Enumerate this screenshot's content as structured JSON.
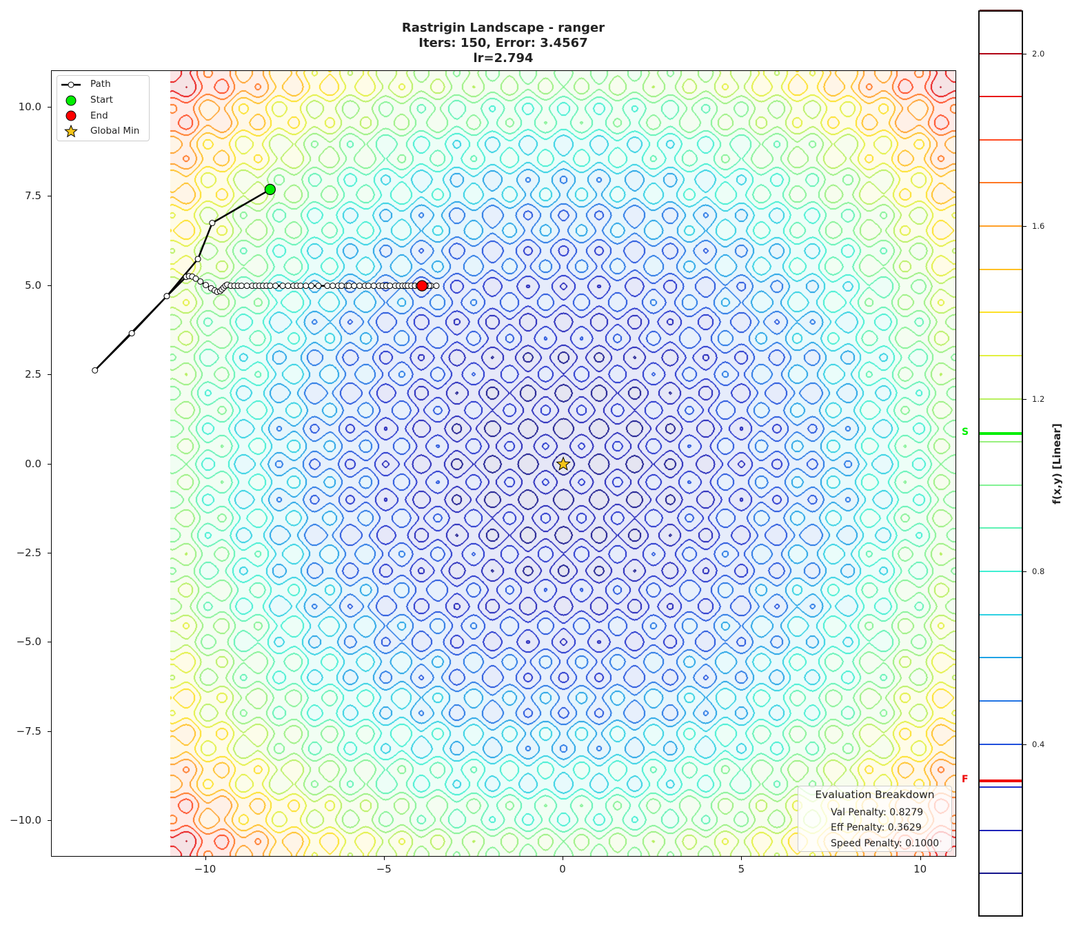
{
  "chart_data": {
    "type": "contour",
    "title_lines": [
      "Rastrigin Landscape - ranger",
      "Iters: 150, Error: 3.4567",
      "lr=2.794"
    ],
    "xlim": [
      -14.31,
      11.01
    ],
    "ylim": [
      -11.02,
      11.02
    ],
    "landscape_range": [
      -11,
      11
    ],
    "x_ticks": [
      -10,
      -5,
      0,
      5,
      10
    ],
    "x_tick_labels": [
      "−10",
      "−5",
      "0",
      "5",
      "10"
    ],
    "y_ticks": [
      10,
      7.5,
      5,
      2.5,
      0,
      -2.5,
      -5,
      -7.5,
      -10
    ],
    "y_tick_labels": [
      "10.0",
      "7.5",
      "5.0",
      "2.5",
      "0.0",
      "−2.5",
      "−5.0",
      "−7.5",
      "−10.0"
    ],
    "grid": false,
    "function": "rastrigin",
    "colorbar": {
      "label": "f(x,y) [Linear]",
      "range": [
        0,
        2.1
      ],
      "ticks": [
        2.0,
        1.6,
        1.2,
        0.8,
        0.4
      ],
      "tick_labels": [
        "2.0",
        "1.6",
        "1.2",
        "0.8",
        "0.4"
      ],
      "levels": [
        0.1,
        0.2,
        0.3,
        0.4,
        0.5,
        0.6,
        0.7,
        0.8,
        0.9,
        1.0,
        1.1,
        1.2,
        1.3,
        1.4,
        1.5,
        1.6,
        1.7,
        1.8,
        1.9,
        2.0,
        2.1
      ],
      "level_colors": [
        "#14148c",
        "#1e22b8",
        "#2030cc",
        "#2050dc",
        "#2274e4",
        "#20a2e6",
        "#2ed0e2",
        "#40efd2",
        "#5ef2b4",
        "#82f294",
        "#98f07e",
        "#b8f060",
        "#e2f040",
        "#fde028",
        "#ffc024",
        "#ffa028",
        "#ff7824",
        "#ff4a22",
        "#e81818",
        "#b00414",
        "#501010"
      ],
      "start_marker": {
        "label": "S",
        "value": 1.12,
        "color": "#00ee00"
      },
      "end_marker": {
        "label": "F",
        "value": 0.314,
        "color": "#ee0000"
      }
    },
    "legend": {
      "placement": "top-left",
      "entries": [
        {
          "label": "Path"
        },
        {
          "label": "Start",
          "color": "#00ee00"
        },
        {
          "label": "End",
          "color": "#ff0000"
        },
        {
          "label": "Global Min",
          "color": "#f5c518"
        }
      ]
    },
    "start": [
      -8.2,
      7.7
    ],
    "end": [
      -3.95,
      5.0
    ],
    "global_min": [
      0,
      0
    ],
    "path": [
      [
        -8.2,
        7.7
      ],
      [
        -9.82,
        6.76
      ],
      [
        -10.22,
        5.75
      ],
      [
        -11.09,
        4.71
      ],
      [
        -12.07,
        3.67
      ],
      [
        -13.1,
        2.63
      ],
      [
        -11.09,
        4.71
      ],
      [
        -10.55,
        5.25
      ],
      [
        -10.47,
        5.27
      ],
      [
        -10.38,
        5.26
      ],
      [
        -10.28,
        5.2
      ],
      [
        -10.15,
        5.12
      ],
      [
        -10.0,
        5.02
      ],
      [
        -9.85,
        4.93
      ],
      [
        -9.75,
        4.87
      ],
      [
        -9.68,
        4.83
      ],
      [
        -9.6,
        4.85
      ],
      [
        -9.55,
        4.9
      ],
      [
        -9.5,
        4.95
      ],
      [
        -9.45,
        5.0
      ],
      [
        -9.4,
        5.03
      ],
      [
        -9.3,
        5.0
      ],
      [
        -9.2,
        5.0
      ],
      [
        -9.1,
        5.0
      ],
      [
        -9.0,
        5.0
      ],
      [
        -8.85,
        5.0
      ],
      [
        -8.7,
        5.0
      ],
      [
        -8.6,
        5.0
      ],
      [
        -8.5,
        5.0
      ],
      [
        -8.4,
        5.0
      ],
      [
        -8.3,
        5.0
      ],
      [
        -8.2,
        5.0
      ],
      [
        -8.05,
        5.0
      ],
      [
        -7.85,
        5.0
      ],
      [
        -7.7,
        5.0
      ],
      [
        -7.55,
        5.0
      ],
      [
        -7.45,
        5.0
      ],
      [
        -7.35,
        5.0
      ],
      [
        -7.2,
        5.0
      ],
      [
        -7.05,
        5.0
      ],
      [
        -6.85,
        5.0
      ],
      [
        -6.6,
        5.0
      ],
      [
        -6.45,
        5.0
      ],
      [
        -6.3,
        5.0
      ],
      [
        -6.2,
        5.0
      ],
      [
        -6.05,
        5.0
      ],
      [
        -6.0,
        5.0
      ],
      [
        -5.85,
        5.0
      ],
      [
        -5.7,
        5.0
      ],
      [
        -5.55,
        5.0
      ],
      [
        -5.45,
        5.0
      ],
      [
        -5.3,
        5.0
      ],
      [
        -5.15,
        5.0
      ],
      [
        -5.05,
        5.0
      ],
      [
        -4.95,
        5.0
      ],
      [
        -4.85,
        5.0
      ],
      [
        -4.7,
        5.0
      ],
      [
        -4.6,
        5.0
      ],
      [
        -4.5,
        5.0
      ],
      [
        -4.42,
        5.0
      ],
      [
        -4.35,
        5.0
      ],
      [
        -4.25,
        5.0
      ],
      [
        -4.15,
        5.0
      ],
      [
        -4.05,
        5.0
      ],
      [
        -3.9,
        5.0
      ],
      [
        -3.8,
        5.0
      ],
      [
        -3.7,
        5.0
      ],
      [
        -3.55,
        5.0
      ],
      [
        -3.75,
        5.0
      ],
      [
        -3.85,
        5.0
      ],
      [
        -3.95,
        5.0
      ]
    ]
  },
  "evaluation": {
    "title": "Evaluation Breakdown",
    "rows": [
      "Val Penalty: 0.8279",
      "Eff Penalty: 0.3629",
      "Speed Penalty: 0.1000"
    ]
  }
}
